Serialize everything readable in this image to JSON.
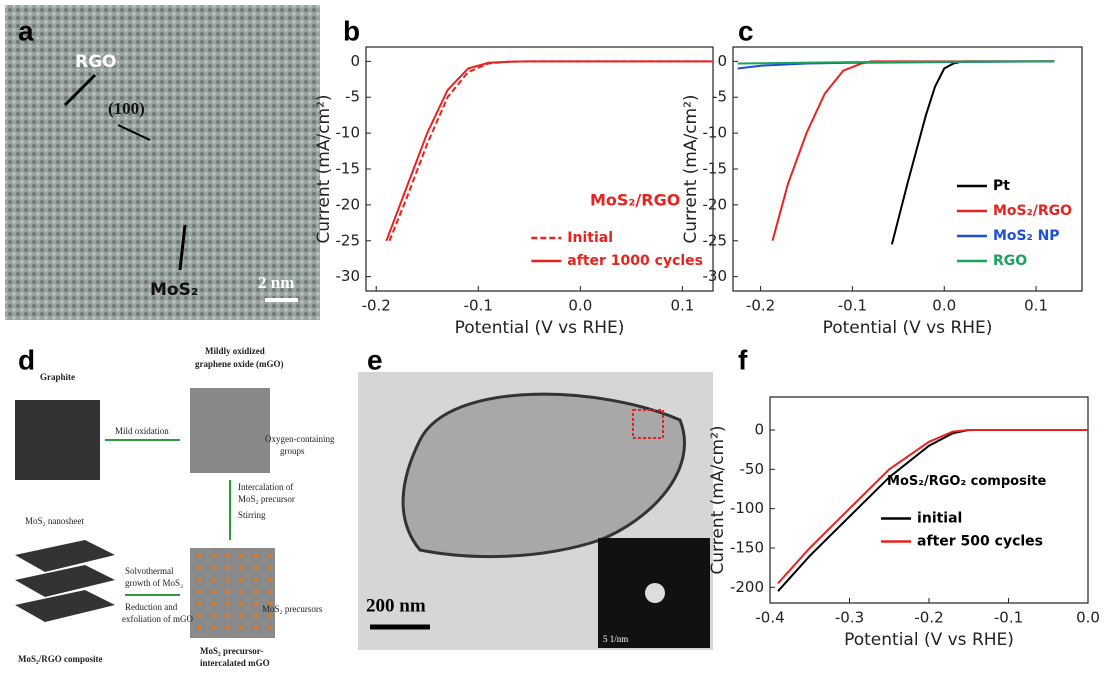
{
  "panel_labels": [
    "a",
    "b",
    "c",
    "d",
    "e",
    "f"
  ],
  "image_a": {
    "labels": [
      "RGO",
      "(100)",
      "MoS₂"
    ],
    "scale_bar": "2 nm"
  },
  "diagram_d": {
    "graphite": "Graphite",
    "mgo": [
      "Mildly oxidized",
      "graphene oxide (mGO)"
    ],
    "mild_oxidation": "Mild oxidation",
    "oxygen_groups": [
      "Oxygen-containing",
      "groups"
    ],
    "intercalation": [
      "Intercalation of",
      "MoS₂ precursor"
    ],
    "stirring": "Stirring",
    "nanosheet": "MoS₂ nanosheet",
    "solvothermal": [
      "Solvothermal",
      "growth of MoS₂"
    ],
    "reduction": [
      "Reduction and",
      "exfoliation of mGO"
    ],
    "precursors": "MoS₂ precursors",
    "composite": "MoS₂/RGO composite",
    "intercalated": [
      "MoS₂ precursor-",
      "intercalated mGO"
    ]
  },
  "image_e": {
    "scale_bar": "200 nm",
    "inset_scale": "5 1/nm"
  },
  "chart_data": [
    {
      "type": "line",
      "xlabel": "Potential (V vs RHE)",
      "ylabel": "Current (mA/cm²)",
      "annotation": "MoS₂/RGO",
      "annotation_color": "#e8231f",
      "legend": "lower right",
      "legend_text_colored": true,
      "xlim": [
        -0.21,
        0.13
      ],
      "ylim": [
        -32,
        2
      ],
      "xticks": [
        -0.2,
        -0.1,
        {
          "value": 0,
          "label": "0.0"
        },
        0.1
      ],
      "yticks": [
        0,
        -5,
        -10,
        -15,
        -20,
        -25,
        -30
      ],
      "series": [
        {
          "name": "Initial",
          "color": "#e8231f",
          "dash": true,
          "x": [
            -0.187,
            -0.17,
            -0.15,
            -0.13,
            -0.11,
            -0.09,
            -0.07,
            -0.05,
            0.13
          ],
          "values": [
            -25,
            -19,
            -11.5,
            -5,
            -1.5,
            -0.3,
            -0.05,
            0,
            0
          ]
        },
        {
          "name": "after 1000 cycles",
          "color": "#e8231f",
          "dash": false,
          "x": [
            -0.19,
            -0.17,
            -0.15,
            -0.13,
            -0.11,
            -0.09,
            -0.07,
            -0.05,
            0.13
          ],
          "values": [
            -25,
            -17.5,
            -10,
            -4,
            -1,
            -0.2,
            -0.05,
            0,
            0
          ]
        }
      ]
    },
    {
      "type": "line",
      "xlabel": "Potential (V vs RHE)",
      "ylabel": "Current (mA/cm²)",
      "legend": "lower right",
      "legend_text_colored": true,
      "xlim": [
        -0.23,
        0.15
      ],
      "ylim": [
        -32,
        2
      ],
      "xticks": [
        -0.2,
        -0.1,
        {
          "value": 0,
          "label": "0.0"
        },
        0.1
      ],
      "yticks": [
        0,
        -5,
        -10,
        -15,
        -20,
        -25,
        -30
      ],
      "series": [
        {
          "name": "Pt",
          "color": "#000000",
          "dash": false,
          "x": [
            -0.057,
            -0.04,
            -0.02,
            -0.01,
            0,
            0.01,
            0.02,
            0.12
          ],
          "values": [
            -25.5,
            -17,
            -7.5,
            -3.5,
            -1,
            -0.3,
            0,
            0
          ]
        },
        {
          "name": "MoS₂/RGO",
          "color": "#e8231f",
          "dash": false,
          "x": [
            -0.187,
            -0.17,
            -0.15,
            -0.13,
            -0.11,
            -0.09,
            -0.08,
            0.12
          ],
          "values": [
            -25,
            -17,
            -10,
            -4.5,
            -1.3,
            -0.3,
            0,
            0
          ]
        },
        {
          "name": "MoS₂ NP",
          "color": "#1f4fd8",
          "dash": false,
          "x": [
            -0.225,
            -0.2,
            -0.15,
            -0.1,
            0,
            0.12
          ],
          "values": [
            -1,
            -0.6,
            -0.3,
            -0.2,
            -0.1,
            0
          ]
        },
        {
          "name": "RGO",
          "color": "#1aa35a",
          "dash": false,
          "x": [
            -0.225,
            -0.1,
            0.12
          ],
          "values": [
            -0.3,
            -0.1,
            0
          ]
        }
      ]
    },
    {
      "type": "line",
      "xlabel": "Potential (V vs RHE)",
      "ylabel": "Current (mA/cm²)",
      "annotation": "MoS₂/RGO₂ composite",
      "annotation_color": "#000000",
      "legend": "center right",
      "legend_text_colored": false,
      "xlim": [
        -0.4,
        0
      ],
      "ylim": [
        -220,
        42
      ],
      "xticks": [
        -0.4,
        -0.3,
        -0.2,
        -0.1,
        {
          "value": 0,
          "label": "0.0"
        }
      ],
      "yticks": [
        0,
        -50,
        -100,
        -150,
        -200
      ],
      "series": [
        {
          "name": "initial",
          "color": "#000000",
          "dash": false,
          "x": [
            -0.39,
            -0.35,
            -0.3,
            -0.25,
            -0.2,
            -0.17,
            -0.15,
            0
          ],
          "values": [
            -205,
            -160,
            -110,
            -60,
            -20,
            -4,
            0,
            0
          ]
        },
        {
          "name": "after 500 cycles",
          "color": "#e8231f",
          "dash": false,
          "x": [
            -0.39,
            -0.35,
            -0.3,
            -0.25,
            -0.2,
            -0.17,
            -0.15,
            0
          ],
          "values": [
            -195,
            -150,
            -100,
            -50,
            -15,
            -2,
            0,
            0
          ]
        }
      ]
    }
  ]
}
